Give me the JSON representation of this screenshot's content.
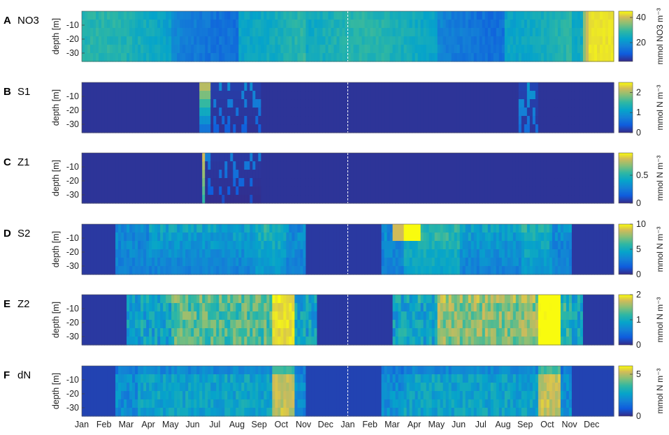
{
  "chart_data": {
    "type": "heatmap",
    "x_tick_labels": [
      "Jan",
      "Feb",
      "Mar",
      "Apr",
      "May",
      "Jun",
      "Jul",
      "Aug",
      "Sep",
      "Oct",
      "Nov",
      "Dec",
      "Jan",
      "Feb",
      "Mar",
      "Apr",
      "May",
      "Jun",
      "Jul",
      "Aug",
      "Sep",
      "Oct",
      "Nov",
      "Dec"
    ],
    "ylabel": "depth [m]",
    "y_ticks": [
      -10,
      -20,
      -30
    ],
    "ylim": [
      -36,
      0
    ],
    "year_boundary_line": "dashed white at second Jan",
    "colormap": "parula",
    "panels": [
      {
        "letter": "A",
        "name": "NO3",
        "clabel": "mmol NO3 m⁻³",
        "cticks": [
          20,
          40
        ],
        "clim": [
          5,
          45
        ],
        "description": "Daily NO3 profiles; high (~40) in late Nov-Dec of year 2, mid (~20) otherwise"
      },
      {
        "letter": "B",
        "name": "S1",
        "clabel": "mmol N m⁻³",
        "cticks": [
          0,
          1,
          2
        ],
        "clim": [
          0,
          2.5
        ],
        "description": "S1 near zero except bursts in June-Aug year 1 and Aug-Sep year 2"
      },
      {
        "letter": "C",
        "name": "Z1",
        "clabel": "mmol N m⁻³",
        "cticks": [
          0,
          0.5
        ],
        "clim": [
          0,
          0.9
        ],
        "description": "Z1 near zero except bursts around June-Aug year 1"
      },
      {
        "letter": "D",
        "name": "S2",
        "clabel": "mmol N m⁻³",
        "cticks": [
          0,
          5,
          10
        ],
        "clim": [
          0,
          10
        ],
        "description": "S2 moderate from Feb to Oct each year"
      },
      {
        "letter": "E",
        "name": "Z2",
        "clabel": "mmol N m⁻³",
        "cticks": [
          0,
          1,
          2
        ],
        "clim": [
          0,
          2
        ],
        "description": "Z2 rises through summer, peak ~2 in Sep-Oct each year"
      },
      {
        "letter": "F",
        "name": "dN",
        "clabel": "mmol N m⁻³",
        "cticks": [
          0,
          5
        ],
        "clim": [
          0,
          6
        ],
        "description": "dN moderate Mar-Sep, peak ~5 in Sep-Oct each year"
      }
    ]
  }
}
